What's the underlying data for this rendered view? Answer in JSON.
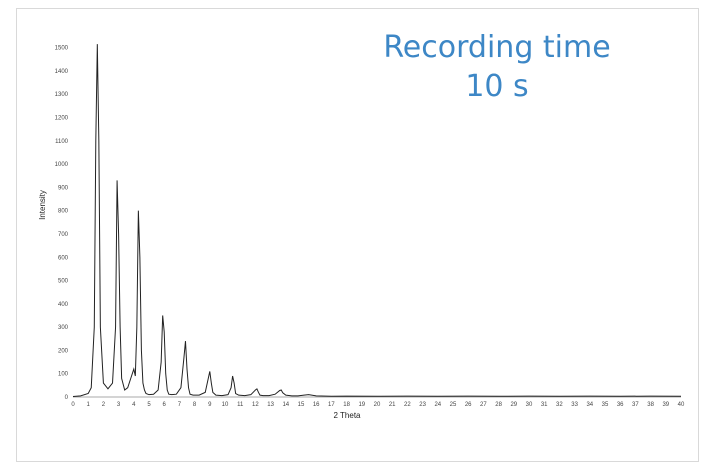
{
  "chart_data": {
    "type": "line",
    "title": "",
    "xlabel": "2 Theta",
    "ylabel": "Intensity",
    "xlim": [
      0,
      40
    ],
    "ylim": [
      0,
      1550
    ],
    "x_ticks": [
      0,
      1,
      2,
      3,
      4,
      5,
      6,
      7,
      8,
      9,
      10,
      11,
      12,
      13,
      14,
      15,
      16,
      17,
      18,
      19,
      20,
      21,
      22,
      23,
      24,
      25,
      26,
      27,
      28,
      29,
      30,
      31,
      32,
      33,
      34,
      35,
      36,
      37,
      38,
      39,
      40
    ],
    "y_ticks": [
      0,
      100,
      200,
      300,
      400,
      500,
      600,
      700,
      800,
      900,
      1000,
      1100,
      1200,
      1300,
      1400,
      1500
    ],
    "grid": false,
    "annotation": {
      "line1": "Recording time",
      "line2": "10 s",
      "color": "#3d87c6"
    },
    "line_color": "#222222",
    "series": [
      {
        "x": [
          0,
          0.5,
          1.0,
          1.2,
          1.4,
          1.5,
          1.6,
          1.7,
          1.8,
          2.0,
          2.3,
          2.6,
          2.8,
          2.9,
          3.0,
          3.1,
          3.2,
          3.4,
          3.6,
          3.8,
          4.0,
          4.1,
          4.2,
          4.3,
          4.4,
          4.5,
          4.6,
          4.7,
          4.8,
          5.0,
          5.3,
          5.6,
          5.8,
          5.9,
          6.0,
          6.1,
          6.2,
          6.3,
          6.5,
          6.8,
          7.1,
          7.3,
          7.4,
          7.5,
          7.6,
          7.7,
          7.9,
          8.3,
          8.7,
          8.9,
          9.0,
          9.1,
          9.2,
          9.4,
          9.8,
          10.2,
          10.4,
          10.5,
          10.6,
          10.7,
          10.9,
          11.3,
          11.7,
          12.0,
          12.1,
          12.2,
          12.3,
          12.5,
          12.9,
          13.3,
          13.6,
          13.7,
          13.8,
          14.0,
          14.4,
          14.8,
          15.2,
          15.5,
          16,
          17,
          18,
          20,
          22,
          24,
          26,
          28,
          30,
          32,
          34,
          36,
          38,
          40
        ],
        "values": [
          2,
          5,
          15,
          40,
          300,
          1100,
          1515,
          1100,
          300,
          60,
          35,
          60,
          300,
          930,
          700,
          300,
          80,
          30,
          40,
          80,
          120,
          90,
          300,
          800,
          600,
          200,
          60,
          30,
          15,
          10,
          12,
          30,
          150,
          350,
          280,
          100,
          30,
          12,
          10,
          12,
          40,
          170,
          240,
          120,
          40,
          12,
          8,
          8,
          20,
          80,
          110,
          60,
          20,
          8,
          6,
          10,
          40,
          90,
          60,
          15,
          8,
          6,
          10,
          30,
          35,
          20,
          8,
          6,
          6,
          12,
          28,
          30,
          18,
          8,
          5,
          5,
          8,
          10,
          5,
          3,
          4,
          3,
          4,
          3,
          4,
          3,
          4,
          3,
          4,
          3,
          4,
          3
        ]
      }
    ]
  }
}
